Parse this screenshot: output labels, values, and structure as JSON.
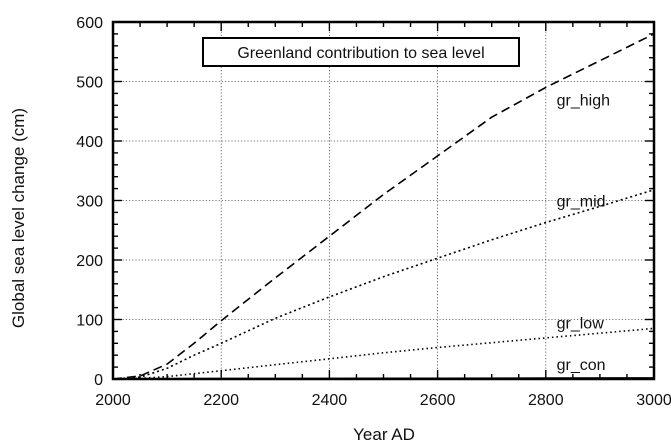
{
  "chart_data": {
    "type": "line",
    "title": "Greenland contribution to sea level",
    "xlabel": "Year AD",
    "ylabel": "Global sea level change (cm)",
    "xlim": [
      2000,
      3000
    ],
    "ylim": [
      0,
      600
    ],
    "x_ticks": [
      2000,
      2200,
      2400,
      2600,
      2800,
      3000
    ],
    "y_ticks": [
      0,
      100,
      200,
      300,
      400,
      500,
      600
    ],
    "grid": true,
    "series": [
      {
        "name": "gr_high",
        "style": "dashed",
        "x": [
          2000,
          2050,
          2100,
          2150,
          2200,
          2300,
          2400,
          2500,
          2600,
          2700,
          2800,
          2900,
          3000
        ],
        "y": [
          0,
          5,
          25,
          60,
          98,
          170,
          240,
          310,
          375,
          440,
          490,
          535,
          580
        ]
      },
      {
        "name": "gr_mid",
        "style": "dotted",
        "x": [
          2000,
          2050,
          2100,
          2150,
          2200,
          2300,
          2400,
          2500,
          2600,
          2700,
          2800,
          2900,
          3000
        ],
        "y": [
          0,
          3,
          18,
          40,
          60,
          102,
          138,
          172,
          203,
          234,
          263,
          290,
          318
        ]
      },
      {
        "name": "gr_low",
        "style": "dash-dot",
        "x": [
          2000,
          2050,
          2100,
          2200,
          2300,
          2400,
          2500,
          2600,
          2700,
          2800,
          2900,
          3000
        ],
        "y": [
          0,
          1,
          4,
          14,
          24,
          34,
          44,
          53,
          61,
          69,
          77,
          85
        ]
      },
      {
        "name": "gr_con",
        "style": "solid",
        "x": [
          2000,
          2200,
          2400,
          2600,
          2800,
          3000
        ],
        "y": [
          0,
          0.3,
          0.6,
          0.9,
          1.2,
          1.5
        ]
      }
    ]
  }
}
